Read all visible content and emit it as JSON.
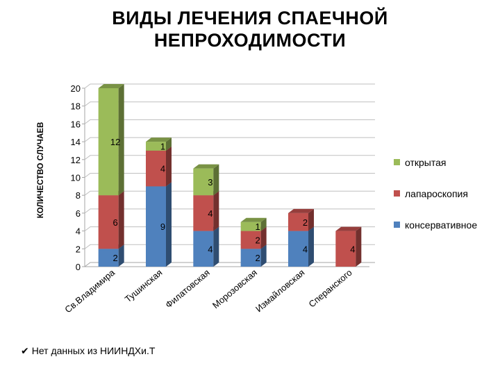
{
  "title": {
    "line1": "ВИДЫ ЛЕЧЕНИЯ СПАЕЧНОЙ",
    "line2": "НЕПРОХОДИМОСТИ"
  },
  "footnote": {
    "check_icon": "✔",
    "text": "Нет данных из НИИНДХи.Т"
  },
  "legend": [
    {
      "label": "открытая",
      "color": "#9bbb59"
    },
    {
      "label": "лапароскопия",
      "color": "#c0504d"
    },
    {
      "label": "консервативное",
      "color": "#4f81bd"
    }
  ],
  "chart_data": {
    "type": "bar",
    "stacked": true,
    "three_d": true,
    "title": "ВИДЫ ЛЕЧЕНИЯ СПАЕЧНОЙ НЕПРОХОДИМОСТИ",
    "xlabel": "",
    "ylabel": "КОЛИЧЕСТВО СЛУЧАЕВ",
    "ylim": [
      0,
      20
    ],
    "yticks": [
      0,
      2,
      4,
      6,
      8,
      10,
      12,
      14,
      16,
      18,
      20
    ],
    "grid": true,
    "legend_position": "right",
    "categories": [
      "Св.Владимира",
      "Тушинская",
      "Филатовская",
      "Морозовская",
      "Измайловская",
      "Сперанского"
    ],
    "series": [
      {
        "name": "консервативное",
        "color": "#4f81bd",
        "values": [
          2,
          9,
          4,
          2,
          4,
          0
        ],
        "labels": [
          "2",
          "9",
          "4",
          "2",
          "4",
          ""
        ]
      },
      {
        "name": "лапароскопия",
        "color": "#c0504d",
        "values": [
          6,
          4,
          4,
          2,
          2,
          4
        ],
        "labels": [
          "6",
          "4",
          "4",
          "2",
          "2",
          "4"
        ]
      },
      {
        "name": "открытая",
        "color": "#9bbb59",
        "values": [
          12,
          1,
          3,
          1,
          0,
          0
        ],
        "labels": [
          "12",
          "1",
          "3",
          "1",
          "",
          ""
        ]
      }
    ]
  }
}
